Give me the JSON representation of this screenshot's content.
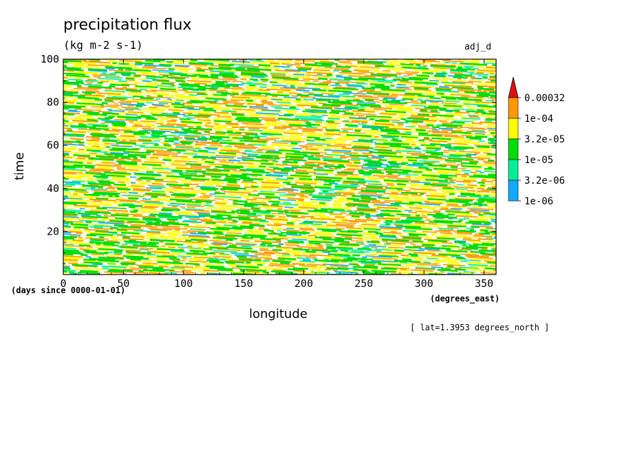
{
  "chart_data": {
    "type": "heatmap",
    "title": "precipitation flux",
    "subtitle": "(kg m-2 s-1)",
    "tag": "adj_d",
    "xlabel": "longitude",
    "xunits": "(degrees_east)",
    "ylabel": "time",
    "yunits": "(days since 0000-01-01)",
    "annotation": "[ lat=1.3953 degrees_north ]",
    "xlim": [
      0,
      360
    ],
    "ylim": [
      0,
      100
    ],
    "xticks": [
      0,
      50,
      100,
      150,
      200,
      250,
      300,
      350
    ],
    "yticks": [
      20,
      40,
      60,
      80,
      100
    ],
    "colorbar": {
      "levels": [
        "0.00032",
        "1e-04",
        "3.2e-05",
        "1e-05",
        "3.2e-06",
        "1e-06"
      ],
      "colors": [
        "#ff9900",
        "#ffff00",
        "#00dd00",
        "#00ee99",
        "#11aaff"
      ],
      "overflow_color": "#dd1111"
    },
    "pattern": "eastward-propagating bands of precipitation streaks sloping downward to the east"
  }
}
